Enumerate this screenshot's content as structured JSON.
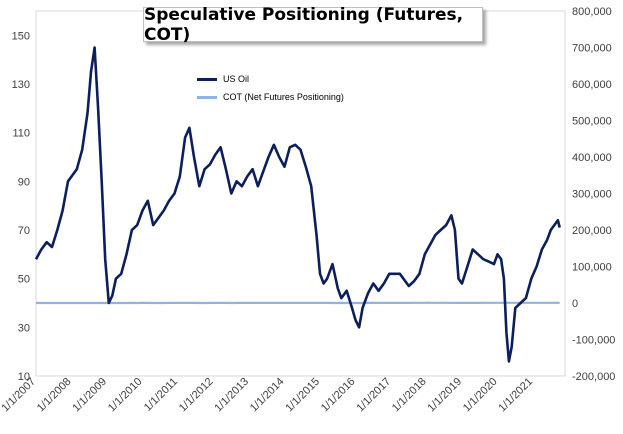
{
  "chart_data": {
    "type": "line",
    "title": "Speculative Positioning (Futures, COT)",
    "x_tick_labels": [
      "1/1/2007",
      "1/1/2008",
      "1/1/2009",
      "1/1/2010",
      "1/1/2011",
      "1/1/2012",
      "1/1/2013",
      "1/1/2014",
      "1/1/2015",
      "1/1/2016",
      "1/1/2017",
      "1/1/2018",
      "1/1/2019",
      "1/1/2020",
      "1/1/2021"
    ],
    "x_range": [
      2007.0,
      2021.9
    ],
    "left_axis": {
      "ticks": [
        "10",
        "30",
        "50",
        "70",
        "90",
        "110",
        "130",
        "150"
      ],
      "ylim": [
        10,
        160
      ]
    },
    "right_axis": {
      "ticks": [
        "-200,000",
        "-100,000",
        "0",
        "100,000",
        "200,000",
        "300,000",
        "400,000",
        "500,000",
        "600,000",
        "700,000",
        "800,000"
      ],
      "ylim": [
        -200000,
        800000
      ]
    },
    "series": [
      {
        "name": "US Oil",
        "axis": "left",
        "color": "#0b1f5c",
        "x": [
          2007.0,
          2007.15,
          2007.3,
          2007.45,
          2007.6,
          2007.75,
          2007.9,
          2008.0,
          2008.15,
          2008.3,
          2008.45,
          2008.55,
          2008.65,
          2008.75,
          2008.85,
          2008.95,
          2009.05,
          2009.15,
          2009.25,
          2009.4,
          2009.55,
          2009.7,
          2009.85,
          2010.0,
          2010.15,
          2010.3,
          2010.45,
          2010.6,
          2010.75,
          2010.9,
          2011.05,
          2011.2,
          2011.32,
          2011.45,
          2011.6,
          2011.75,
          2011.9,
          2012.05,
          2012.2,
          2012.35,
          2012.5,
          2012.65,
          2012.8,
          2012.95,
          2013.1,
          2013.25,
          2013.4,
          2013.55,
          2013.7,
          2013.85,
          2014.0,
          2014.15,
          2014.3,
          2014.45,
          2014.6,
          2014.75,
          2014.9,
          2015.0,
          2015.1,
          2015.2,
          2015.35,
          2015.5,
          2015.6,
          2015.75,
          2015.9,
          2016.0,
          2016.1,
          2016.2,
          2016.35,
          2016.5,
          2016.65,
          2016.8,
          2016.95,
          2017.1,
          2017.25,
          2017.4,
          2017.5,
          2017.65,
          2017.8,
          2017.95,
          2018.1,
          2018.25,
          2018.4,
          2018.55,
          2018.7,
          2018.8,
          2018.9,
          2019.0,
          2019.15,
          2019.3,
          2019.45,
          2019.6,
          2019.75,
          2019.9,
          2020.0,
          2020.1,
          2020.18,
          2020.25,
          2020.32,
          2020.4,
          2020.5,
          2020.65,
          2020.8,
          2020.95,
          2021.1,
          2021.25,
          2021.4,
          2021.5,
          2021.6,
          2021.7,
          2021.75
        ],
        "values": [
          58,
          62,
          65,
          63,
          70,
          78,
          90,
          92,
          95,
          103,
          118,
          135,
          145,
          120,
          90,
          58,
          40,
          43,
          50,
          52,
          60,
          70,
          72,
          78,
          82,
          72,
          75,
          78,
          82,
          85,
          92,
          108,
          112,
          100,
          88,
          95,
          97,
          101,
          104,
          95,
          85,
          90,
          88,
          92,
          95,
          88,
          94,
          100,
          105,
          100,
          96,
          104,
          105,
          103,
          96,
          88,
          68,
          52,
          48,
          50,
          56,
          46,
          42,
          45,
          38,
          33,
          30,
          38,
          44,
          48,
          45,
          48,
          52,
          52,
          52,
          49,
          47,
          49,
          52,
          60,
          64,
          68,
          70,
          72,
          76,
          70,
          50,
          48,
          55,
          62,
          60,
          58,
          57,
          56,
          60,
          58,
          50,
          28,
          16,
          22,
          38,
          40,
          42,
          50,
          55,
          62,
          66,
          70,
          72,
          74,
          71
        ],
        "label": "US Oil"
      },
      {
        "name": "COT (Net Futures Positioning)",
        "axis": "right",
        "color": "#8eb4e3",
        "x": [
          2007.0,
          2007.15,
          2007.3,
          2007.45,
          2007.6,
          2007.75,
          2007.9,
          2008.05,
          2008.2,
          2008.35,
          2008.5,
          2008.65,
          2008.8,
          2008.95,
          2009.1,
          2009.25,
          2009.4,
          2009.55,
          2009.7,
          2009.85,
          2010.0,
          2010.15,
          2010.3,
          2010.45,
          2010.6,
          2010.75,
          2010.9,
          2011.05,
          2011.2,
          2011.35,
          2011.5,
          2011.65,
          2011.8,
          2011.95,
          2012.1,
          2012.25,
          2012.4,
          2012.55,
          2012.7,
          2012.85,
          2013.0,
          2013.15,
          2013.3,
          2013.45,
          2013.6,
          2013.75,
          2013.9,
          2014.05,
          2014.2,
          2014.35,
          2014.5,
          2014.65,
          2014.8,
          2014.95,
          2015.1,
          2015.25,
          2015.4,
          2015.55,
          2015.7,
          2015.85,
          2016.0,
          2016.15,
          2016.3,
          2016.45,
          2016.6,
          2016.75,
          2016.9,
          2017.05,
          2017.2,
          2017.35,
          2017.5,
          2017.65,
          2017.8,
          2017.95,
          2018.05,
          2018.15,
          2018.25,
          2018.4,
          2018.55,
          2018.7,
          2018.85,
          2019.0,
          2019.15,
          2019.3,
          2019.45,
          2019.6,
          2019.75,
          2019.9,
          2020.05,
          2020.2,
          2020.3,
          2020.45,
          2020.6,
          2020.75,
          2020.9,
          2021.05,
          2021.2,
          2021.35,
          2021.5,
          2021.6,
          2021.7,
          2021.75
        ],
        "values": [
          0,
          20,
          40,
          60,
          120,
          90,
          30,
          10,
          20,
          60,
          40,
          20,
          10,
          -20,
          10,
          30,
          90,
          120,
          150,
          100,
          160,
          170,
          130,
          90,
          120,
          140,
          180,
          260,
          220,
          200,
          140,
          90,
          120,
          140,
          180,
          200,
          150,
          90,
          140,
          160,
          220,
          240,
          270,
          350,
          300,
          320,
          360,
          380,
          350,
          370,
          360,
          340,
          300,
          200,
          180,
          140,
          120,
          160,
          130,
          90,
          60,
          130,
          180,
          220,
          280,
          300,
          330,
          380,
          350,
          300,
          360,
          420,
          450,
          560,
          700,
          640,
          600,
          500,
          430,
          360,
          280,
          140,
          240,
          260,
          360,
          420,
          480,
          470,
          500,
          520,
          460,
          560,
          580,
          500,
          560,
          520,
          500,
          530,
          520,
          510,
          500,
          500
        ],
        "label": "COT (Net Futures Positioning)"
      }
    ],
    "legend": {
      "position": "top-left-inside"
    }
  }
}
